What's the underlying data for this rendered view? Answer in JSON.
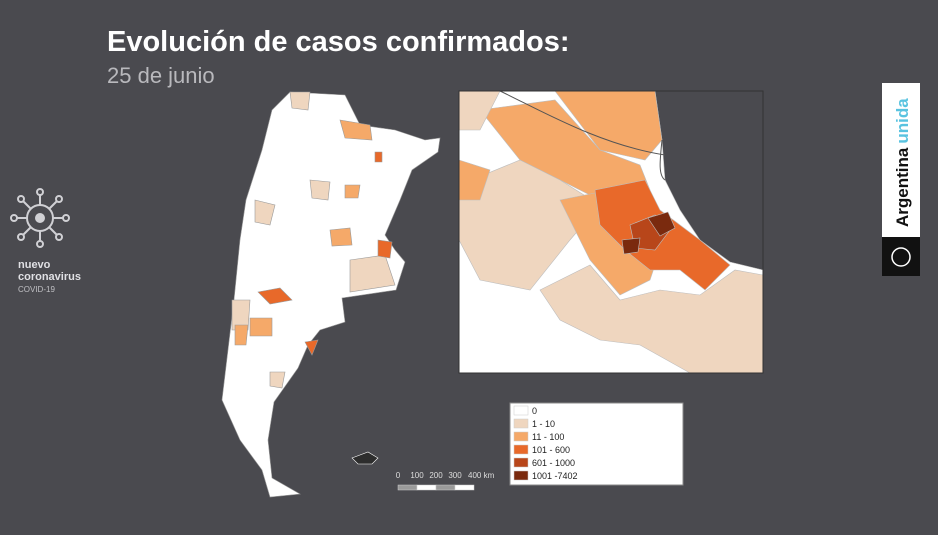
{
  "header": {
    "title": "Evolución de casos confirmados:",
    "subtitle": "25 de junio"
  },
  "legend": {
    "items": [
      {
        "label": "0",
        "color": "#ffffff"
      },
      {
        "label": "1 - 10",
        "color": "#efd6bf"
      },
      {
        "label": "11 - 100",
        "color": "#f5a969"
      },
      {
        "label": "101 - 600",
        "color": "#e8692a"
      },
      {
        "label": "601 - 1000",
        "color": "#b8461a"
      },
      {
        "label": "1001 -7402",
        "color": "#7a2a0e"
      }
    ]
  },
  "scale_bar": {
    "labels": [
      "0",
      "100",
      "200",
      "300",
      "400 km"
    ]
  },
  "branding": {
    "virus": [
      "nuevo",
      "coronavirus",
      "COVID-19"
    ],
    "gov": {
      "word1": "Argentina",
      "word2": "unida"
    }
  }
}
